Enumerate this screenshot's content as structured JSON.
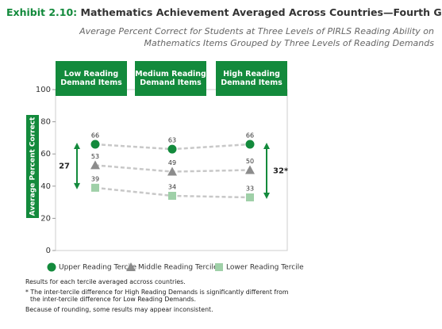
{
  "chart_data": {
    "type": "line",
    "title_prefix": "Exhibit 2.10:",
    "title": "Mathematics Achievement Averaged Across Countries—Fourth Grade",
    "subtitle": [
      "Average Percent Correct for Students at Three Levels of PIRLS Reading Ability on",
      "Mathematics Items Grouped by Three Levels of Reading Demands"
    ],
    "categories": [
      "Low Reading Demand Items",
      "Medium Reading Demand Items",
      "High Reading Demand Items"
    ],
    "ylabel": "Average Percent Correct",
    "ylim": [
      0,
      100
    ],
    "yticks": [
      0,
      20,
      40,
      60,
      80,
      100
    ],
    "series": [
      {
        "name": "Upper Reading Tercile",
        "color": "#138a3c",
        "marker": "circle",
        "values": [
          66,
          63,
          66
        ]
      },
      {
        "name": "Middle Reading Tercile",
        "color": "#8c8c8c",
        "marker": "triangle",
        "values": [
          53,
          49,
          50
        ]
      },
      {
        "name": "Lower Reading Tercile",
        "color": "#9fd0a8",
        "marker": "square",
        "values": [
          39,
          34,
          33
        ]
      }
    ],
    "differences": [
      27,
      {
        "value": 32,
        "label": "32*"
      }
    ],
    "notes": [
      "Results for each tercile averaged accross countries.",
      "* The inter-tercile difference for High Reading Demands is significantly different from the inter-tercile difference for Low Reading Demands.",
      "Because of rounding, some results may appear inconsistent."
    ]
  }
}
